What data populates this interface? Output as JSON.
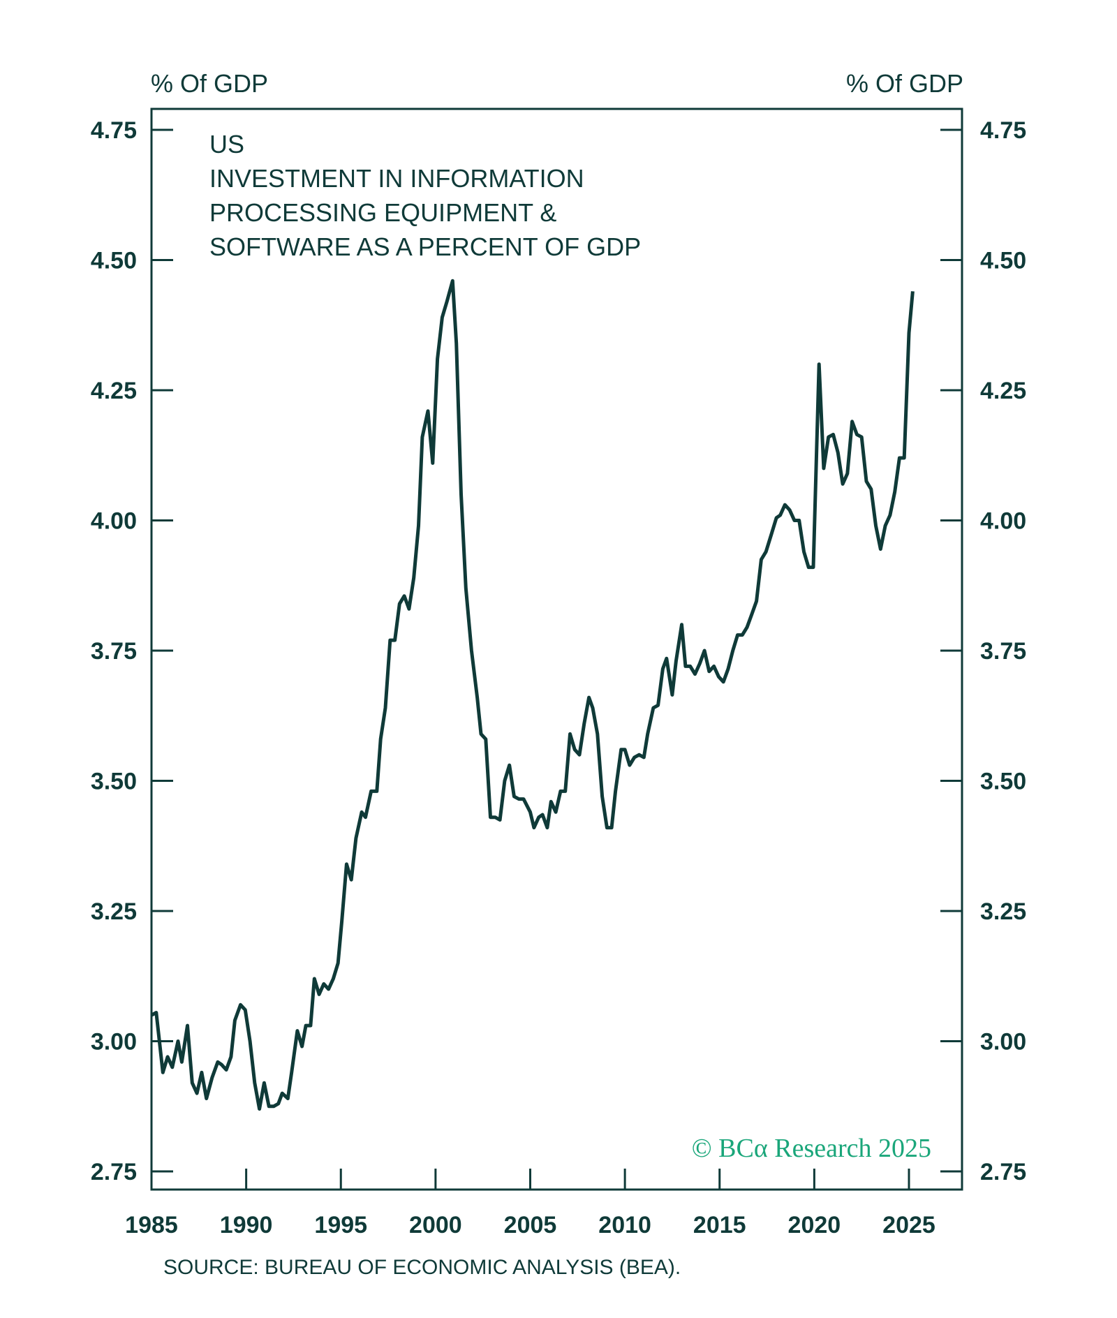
{
  "chart_data": {
    "type": "line",
    "title_lines": [
      "US",
      "INVESTMENT IN INFORMATION",
      "PROCESSING EQUIPMENT &",
      "SOFTWARE AS A PERCENT OF GDP"
    ],
    "ylabel_left": "% Of GDP",
    "ylabel_right": "% Of GDP",
    "source": "SOURCE: BUREAU OF ECONOMIC ANALYSIS (BEA).",
    "watermark": "© BCα Research 2025",
    "ylim": [
      2.75,
      4.75
    ],
    "xlim": [
      1985,
      2027.8
    ],
    "yticks": [
      "2.75",
      "3.00",
      "3.25",
      "3.50",
      "3.75",
      "4.00",
      "4.25",
      "4.50",
      "4.75"
    ],
    "xticks": [
      "1985",
      "1990",
      "1995",
      "2000",
      "2005",
      "2010",
      "2015",
      "2020",
      "2025"
    ],
    "grid": false,
    "colors": {
      "line": "#0f3a38",
      "axis": "#0f3a38",
      "watermark": "#1aa67a"
    },
    "x": [
      1985.0,
      1985.25,
      1985.6,
      1985.85,
      1986.1,
      1986.4,
      1986.6,
      1986.9,
      1987.15,
      1987.4,
      1987.65,
      1987.9,
      1988.2,
      1988.5,
      1988.7,
      1988.95,
      1989.2,
      1989.4,
      1989.7,
      1989.95,
      1990.2,
      1990.45,
      1990.7,
      1990.95,
      1991.2,
      1991.45,
      1991.7,
      1991.9,
      1992.2,
      1992.4,
      1992.7,
      1992.95,
      1993.15,
      1993.4,
      1993.6,
      1993.85,
      1994.1,
      1994.35,
      1994.6,
      1994.85,
      1995.05,
      1995.3,
      1995.55,
      1995.8,
      1996.1,
      1996.3,
      1996.6,
      1996.9,
      1997.1,
      1997.35,
      1997.6,
      1997.85,
      1998.1,
      1998.35,
      1998.6,
      1998.85,
      1999.1,
      1999.3,
      1999.6,
      1999.85,
      2000.1,
      2000.35,
      2000.6,
      2000.9,
      2001.1,
      2001.35,
      2001.6,
      2001.9,
      2002.2,
      2002.4,
      2002.65,
      2002.9,
      2003.15,
      2003.4,
      2003.65,
      2003.9,
      2004.15,
      2004.4,
      2004.65,
      2005.0,
      2005.2,
      2005.45,
      2005.65,
      2005.9,
      2006.1,
      2006.35,
      2006.6,
      2006.85,
      2007.1,
      2007.35,
      2007.6,
      2007.85,
      2008.1,
      2008.3,
      2008.55,
      2008.8,
      2009.05,
      2009.3,
      2009.5,
      2009.8,
      2010.0,
      2010.25,
      2010.5,
      2010.75,
      2011.0,
      2011.2,
      2011.5,
      2011.75,
      2012.0,
      2012.2,
      2012.5,
      2012.7,
      2013.0,
      2013.2,
      2013.45,
      2013.7,
      2013.95,
      2014.2,
      2014.45,
      2014.7,
      2014.95,
      2015.2,
      2015.45,
      2015.7,
      2015.95,
      2016.2,
      2016.45,
      2016.7,
      2016.95,
      2017.2,
      2017.45,
      2017.75,
      2018.0,
      2018.2,
      2018.45,
      2018.7,
      2018.95,
      2019.2,
      2019.45,
      2019.7,
      2019.95,
      2020.25,
      2020.5,
      2020.75,
      2021.0,
      2021.25,
      2021.5,
      2021.75,
      2022.0,
      2022.25,
      2022.5,
      2022.75,
      2023.0,
      2023.25,
      2023.5,
      2023.75,
      2024.0,
      2024.25,
      2024.5,
      2024.75,
      2025.0,
      2025.2
    ],
    "values": [
      3.05,
      3.055,
      2.94,
      2.97,
      2.95,
      3.0,
      2.96,
      3.03,
      2.92,
      2.9,
      2.94,
      2.89,
      2.93,
      2.96,
      2.955,
      2.945,
      2.97,
      3.04,
      3.07,
      3.06,
      3.0,
      2.92,
      2.87,
      2.92,
      2.875,
      2.875,
      2.88,
      2.9,
      2.89,
      2.94,
      3.02,
      2.99,
      3.03,
      3.03,
      3.12,
      3.09,
      3.11,
      3.1,
      3.12,
      3.15,
      3.23,
      3.34,
      3.31,
      3.39,
      3.44,
      3.43,
      3.48,
      3.48,
      3.58,
      3.64,
      3.77,
      3.77,
      3.84,
      3.855,
      3.83,
      3.89,
      3.99,
      4.16,
      4.21,
      4.11,
      4.31,
      4.39,
      4.42,
      4.46,
      4.34,
      4.05,
      3.87,
      3.75,
      3.66,
      3.59,
      3.58,
      3.43,
      3.43,
      3.425,
      3.5,
      3.53,
      3.47,
      3.465,
      3.465,
      3.44,
      3.41,
      3.43,
      3.435,
      3.41,
      3.46,
      3.44,
      3.48,
      3.48,
      3.59,
      3.56,
      3.55,
      3.61,
      3.66,
      3.64,
      3.59,
      3.47,
      3.41,
      3.41,
      3.48,
      3.56,
      3.56,
      3.53,
      3.545,
      3.55,
      3.545,
      3.59,
      3.64,
      3.645,
      3.715,
      3.735,
      3.665,
      3.73,
      3.8,
      3.72,
      3.72,
      3.705,
      3.725,
      3.75,
      3.71,
      3.72,
      3.7,
      3.69,
      3.715,
      3.75,
      3.78,
      3.78,
      3.795,
      3.82,
      3.845,
      3.925,
      3.94,
      3.975,
      4.005,
      4.01,
      4.03,
      4.02,
      4.0,
      4.0,
      3.94,
      3.91,
      3.91,
      4.3,
      4.1,
      4.16,
      4.165,
      4.13,
      4.07,
      4.09,
      4.19,
      4.165,
      4.16,
      4.075,
      4.06,
      3.99,
      3.945,
      3.99,
      4.01,
      4.055,
      4.12,
      4.12,
      4.36,
      4.44
    ]
  }
}
